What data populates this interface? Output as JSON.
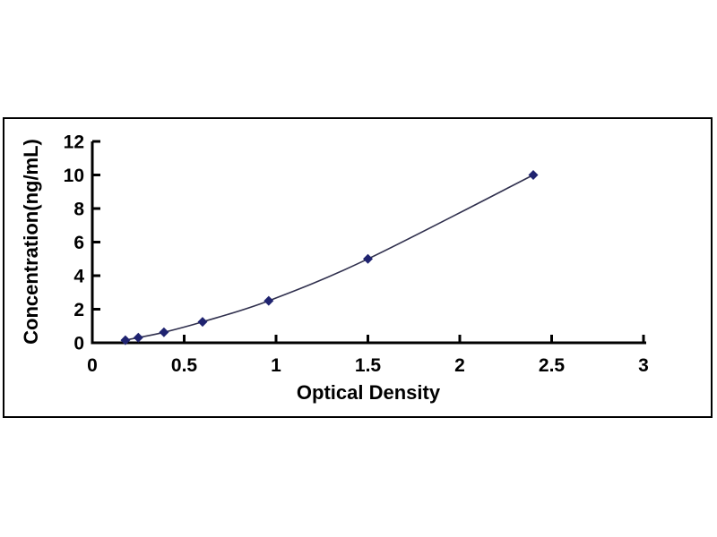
{
  "chart_data": {
    "type": "line",
    "title": "",
    "xlabel": "Optical Density",
    "ylabel": "Concentration(ng/mL)",
    "xlim": [
      0,
      3
    ],
    "ylim": [
      0,
      12
    ],
    "x_ticks": [
      "0",
      "0.5",
      "1",
      "1.5",
      "2",
      "2.5",
      "3"
    ],
    "y_ticks": [
      "0",
      "2",
      "4",
      "6",
      "8",
      "10",
      "12"
    ],
    "grid": false,
    "legend": "none",
    "axis_color": "#000000",
    "plot_border_color": "#000000",
    "series": [
      {
        "name": "standard-curve",
        "marker": "diamond",
        "marker_color": "#1f2370",
        "line_color": "#30304e",
        "points": [
          {
            "x": 0.18,
            "y": 0.156
          },
          {
            "x": 0.25,
            "y": 0.312
          },
          {
            "x": 0.39,
            "y": 0.625
          },
          {
            "x": 0.6,
            "y": 1.25
          },
          {
            "x": 0.96,
            "y": 2.5
          },
          {
            "x": 1.5,
            "y": 5
          },
          {
            "x": 2.4,
            "y": 10
          }
        ]
      }
    ]
  }
}
